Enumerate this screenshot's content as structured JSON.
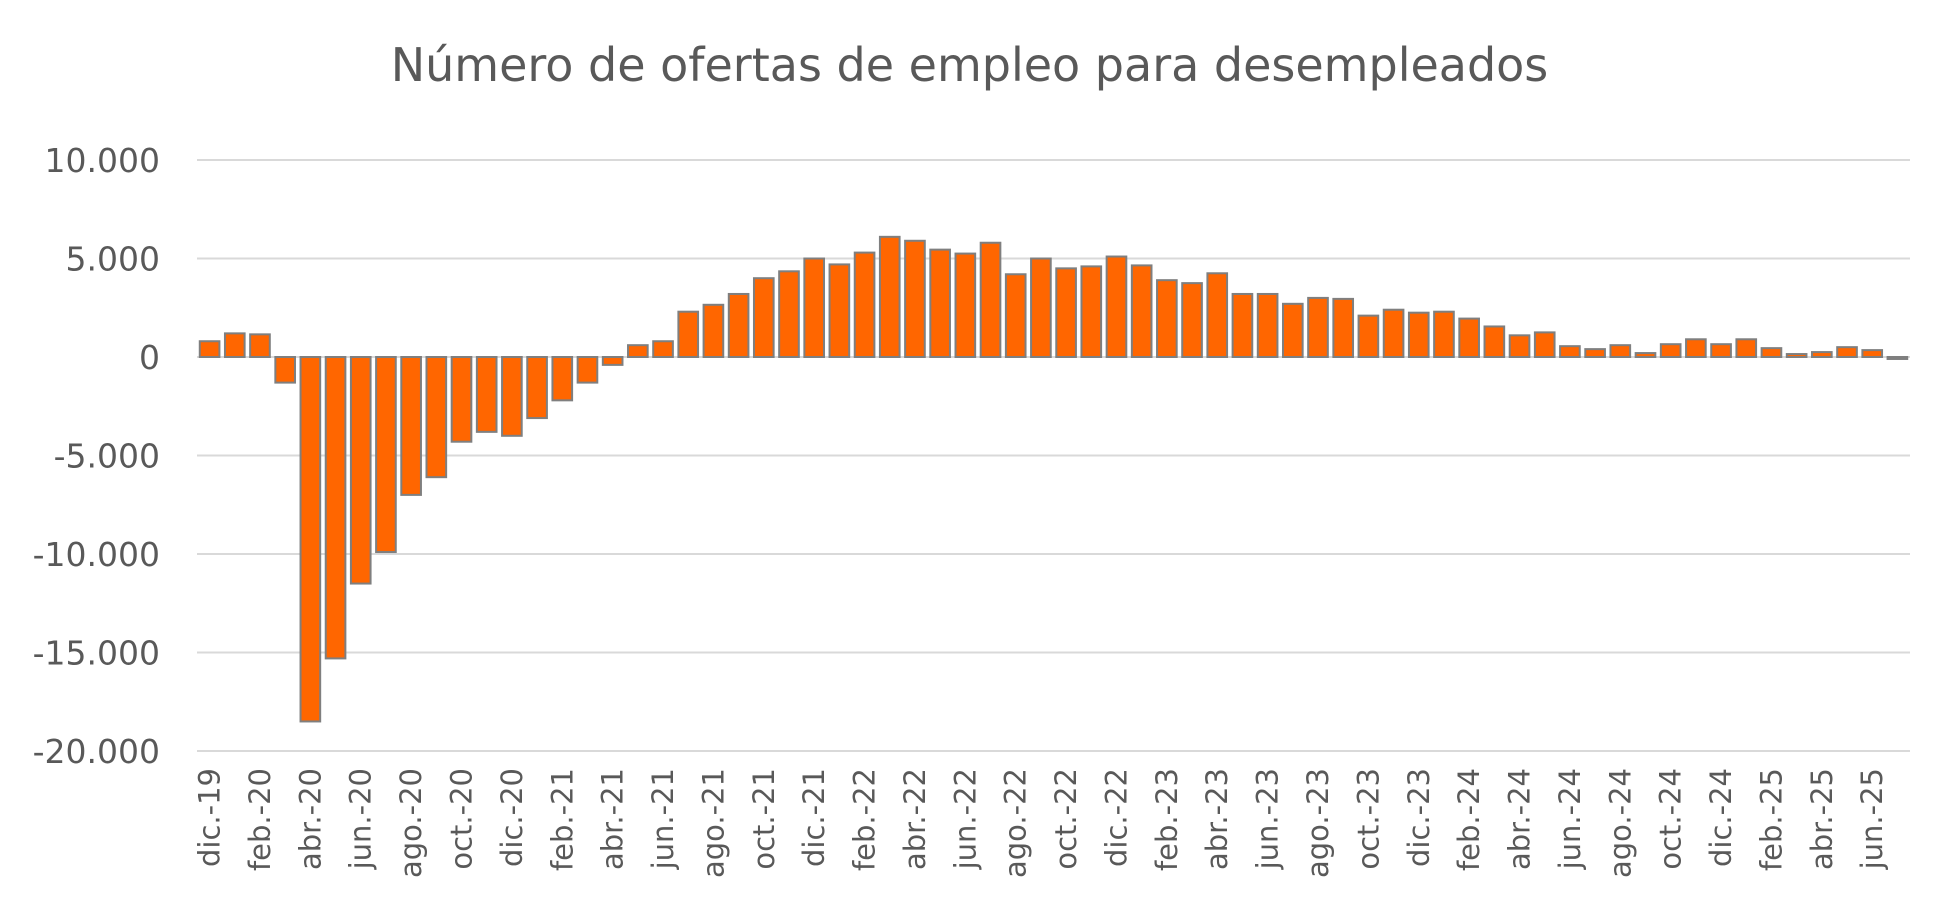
{
  "chart_data": {
    "type": "bar",
    "title": "Número de ofertas de empleo para desempleados",
    "xlabel": "",
    "ylabel": "",
    "ylim": [
      -20000,
      10000
    ],
    "yticks": [
      10000,
      5000,
      0,
      -5000,
      -10000,
      -15000,
      -20000
    ],
    "ytick_labels": [
      "10.000",
      "5.000",
      "0",
      "-5.000",
      "-10.000",
      "-15.000",
      "-20.000"
    ],
    "grid": true,
    "legend": "none",
    "colors": {
      "bar": "#ff6600",
      "bar_border": "#7f7f7f",
      "grid": "#d9d9d9",
      "text": "#595959"
    },
    "categories": [
      "dic.-19",
      "ene.-20",
      "feb.-20",
      "mar.-20",
      "abr.-20",
      "may.-20",
      "jun.-20",
      "jul.-20",
      "ago.-20",
      "sep.-20",
      "oct.-20",
      "nov.-20",
      "dic.-20",
      "ene.-21",
      "feb.-21",
      "mar.-21",
      "abr.-21",
      "may.-21",
      "jun.-21",
      "jul.-21",
      "ago.-21",
      "sep.-21",
      "oct.-21",
      "nov.-21",
      "dic.-21",
      "ene.-22",
      "feb.-22",
      "mar.-22",
      "abr.-22",
      "may.-22",
      "jun.-22",
      "jul.-22",
      "ago.-22",
      "sep.-22",
      "oct.-22",
      "nov.-22",
      "dic.-22",
      "ene.-23",
      "feb.-23",
      "mar.-23",
      "abr.-23",
      "may.-23",
      "jun.-23",
      "jul.-23",
      "ago.-23",
      "sep.-23",
      "oct.-23",
      "nov.-23",
      "dic.-23",
      "ene.-24",
      "feb.-24",
      "mar.-24",
      "abr.-24",
      "may.-24",
      "jun.-24",
      "jul.-24",
      "ago.-24",
      "sep.-24",
      "oct.-24",
      "nov.-24",
      "dic.-24",
      "ene.-25",
      "feb.-25",
      "mar.-25",
      "abr.-25",
      "may.-25",
      "jun.-25",
      "jul.-25"
    ],
    "visible_tick_labels": [
      "dic.-19",
      "feb.-20",
      "abr.-20",
      "jun.-20",
      "ago.-20",
      "oct.-20",
      "dic.-20",
      "feb.-21",
      "abr.-21",
      "jun.-21",
      "ago.-21",
      "oct.-21",
      "dic.-21",
      "feb.-22",
      "abr.-22",
      "jun.-22",
      "ago.-22",
      "oct.-22",
      "dic.-22",
      "feb.-23",
      "abr.-23",
      "jun.-23",
      "ago.-23",
      "oct.-23",
      "dic.-23",
      "feb.-24",
      "abr.-24",
      "jun.-24",
      "ago.-24",
      "oct.-24",
      "dic.-24",
      "feb.-25",
      "abr.-25",
      "jun.-25"
    ],
    "values": [
      800,
      1200,
      1150,
      -1300,
      -18500,
      -15300,
      -11500,
      -9900,
      -7000,
      -6100,
      -4300,
      -3800,
      -4000,
      -3100,
      -2200,
      -1300,
      -400,
      600,
      800,
      2300,
      2650,
      3200,
      4000,
      4350,
      5000,
      4700,
      5300,
      6100,
      5900,
      5450,
      5250,
      5800,
      4200,
      5000,
      4500,
      4600,
      5100,
      4650,
      3900,
      3750,
      4250,
      3200,
      3200,
      2700,
      3000,
      2950,
      2100,
      2400,
      2250,
      2300,
      1950,
      1550,
      1100,
      1250,
      550,
      400,
      600,
      200,
      650,
      900,
      650,
      900,
      450,
      150,
      250,
      500,
      350,
      -100
    ]
  }
}
